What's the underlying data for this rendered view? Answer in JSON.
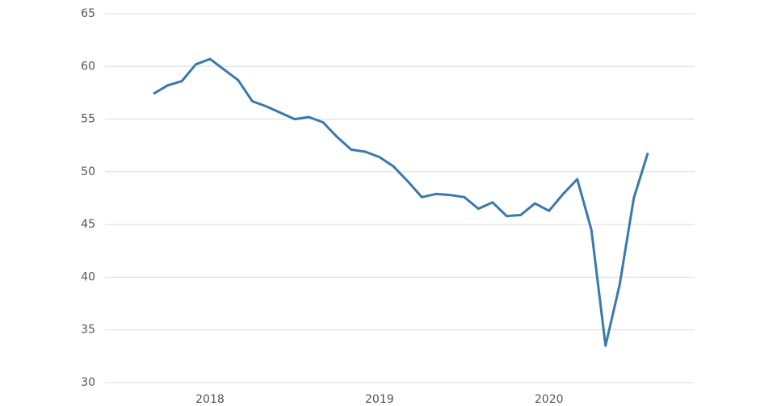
{
  "chart_data": {
    "type": "line",
    "categories": [
      null,
      null,
      null,
      null,
      "2018",
      null,
      null,
      null,
      null,
      null,
      null,
      null,
      null,
      null,
      null,
      null,
      "2019",
      null,
      null,
      null,
      null,
      null,
      null,
      null,
      null,
      null,
      null,
      null,
      "2020",
      null,
      null,
      null,
      null,
      null,
      null,
      null
    ],
    "series": [
      {
        "color": "#3a78b0",
        "values": [
          57.4,
          58.2,
          58.6,
          60.2,
          60.7,
          59.7,
          58.7,
          56.7,
          56.2,
          55.6,
          55.0,
          55.2,
          54.7,
          53.3,
          52.1,
          51.9,
          51.4,
          50.5,
          49.1,
          47.6,
          47.9,
          47.8,
          47.6,
          46.5,
          47.1,
          45.8,
          45.9,
          47.0,
          46.3,
          47.9,
          49.3,
          44.5,
          33.5,
          39.3,
          47.5,
          51.8
        ]
      }
    ],
    "ylim": [
      30,
      65
    ],
    "yticks": [
      30,
      35,
      40,
      45,
      50,
      55,
      60,
      65
    ],
    "grid": true
  }
}
